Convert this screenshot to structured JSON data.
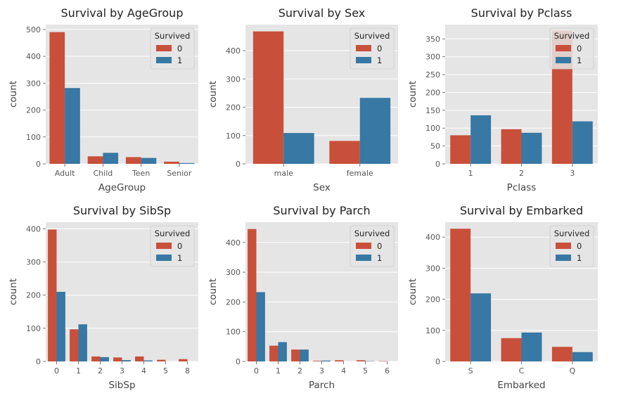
{
  "colors": {
    "survived_0": "#c8503a",
    "survived_1": "#3778a4",
    "panel_bg": "#e5e5e5",
    "grid": "#ffffff"
  },
  "chart_data": [
    {
      "type": "bar",
      "title": "Survival by AgeGroup",
      "xlabel": "AgeGroup",
      "ylabel": "count",
      "categories": [
        "Adult",
        "Child",
        "Teen",
        "Senior"
      ],
      "legend_title": "Survived",
      "legend_position": "top-right",
      "series": [
        {
          "name": "0",
          "values": [
            490,
            28,
            25,
            8
          ]
        },
        {
          "name": "1",
          "values": [
            282,
            41,
            22,
            3
          ]
        }
      ],
      "ylim": [
        0,
        518
      ],
      "yticks": [
        0,
        100,
        200,
        300,
        400,
        500
      ],
      "grid": true
    },
    {
      "type": "bar",
      "title": "Survival by Sex",
      "xlabel": "Sex",
      "ylabel": "count",
      "categories": [
        "male",
        "female"
      ],
      "legend_title": "Survived",
      "legend_position": "top-right",
      "series": [
        {
          "name": "0",
          "values": [
            468,
            81
          ]
        },
        {
          "name": "1",
          "values": [
            109,
            233
          ]
        }
      ],
      "ylim": [
        0,
        492
      ],
      "yticks": [
        0,
        100,
        200,
        300,
        400
      ],
      "grid": true
    },
    {
      "type": "bar",
      "title": "Survival by Pclass",
      "xlabel": "Pclass",
      "ylabel": "count",
      "categories": [
        "1",
        "2",
        "3"
      ],
      "legend_title": "Survived",
      "legend_position": "top-right",
      "series": [
        {
          "name": "0",
          "values": [
            80,
            97,
            372
          ]
        },
        {
          "name": "1",
          "values": [
            136,
            87,
            119
          ]
        }
      ],
      "ylim": [
        0,
        390
      ],
      "yticks": [
        0,
        50,
        100,
        150,
        200,
        250,
        300,
        350
      ],
      "grid": true
    },
    {
      "type": "bar",
      "title": "Survival by SibSp",
      "xlabel": "SibSp",
      "ylabel": "count",
      "categories": [
        "0",
        "1",
        "2",
        "3",
        "4",
        "5",
        "8"
      ],
      "legend_title": "Survived",
      "legend_position": "top-right",
      "series": [
        {
          "name": "0",
          "values": [
            398,
            97,
            15,
            12,
            15,
            5,
            7
          ]
        },
        {
          "name": "1",
          "values": [
            210,
            112,
            13,
            4,
            3,
            0,
            0
          ]
        }
      ],
      "ylim": [
        0,
        420
      ],
      "yticks": [
        0,
        100,
        200,
        300,
        400
      ],
      "grid": true
    },
    {
      "type": "bar",
      "title": "Survival by Parch",
      "xlabel": "Parch",
      "ylabel": "count",
      "categories": [
        "0",
        "1",
        "2",
        "3",
        "4",
        "5",
        "6"
      ],
      "legend_title": "Survived",
      "legend_position": "top-right",
      "series": [
        {
          "name": "0",
          "values": [
            445,
            53,
            40,
            2,
            4,
            4,
            1
          ]
        },
        {
          "name": "1",
          "values": [
            233,
            65,
            40,
            3,
            0,
            1,
            0
          ]
        }
      ],
      "ylim": [
        0,
        468
      ],
      "yticks": [
        0,
        100,
        200,
        300,
        400
      ],
      "grid": true
    },
    {
      "type": "bar",
      "title": "Survival by Embarked",
      "xlabel": "Embarked",
      "ylabel": "count",
      "categories": [
        "S",
        "C",
        "Q"
      ],
      "legend_title": "Survived",
      "legend_position": "top-right",
      "series": [
        {
          "name": "0",
          "values": [
            427,
            75,
            47
          ]
        },
        {
          "name": "1",
          "values": [
            219,
            93,
            30
          ]
        }
      ],
      "ylim": [
        0,
        448
      ],
      "yticks": [
        0,
        100,
        200,
        300,
        400
      ],
      "grid": true
    }
  ]
}
